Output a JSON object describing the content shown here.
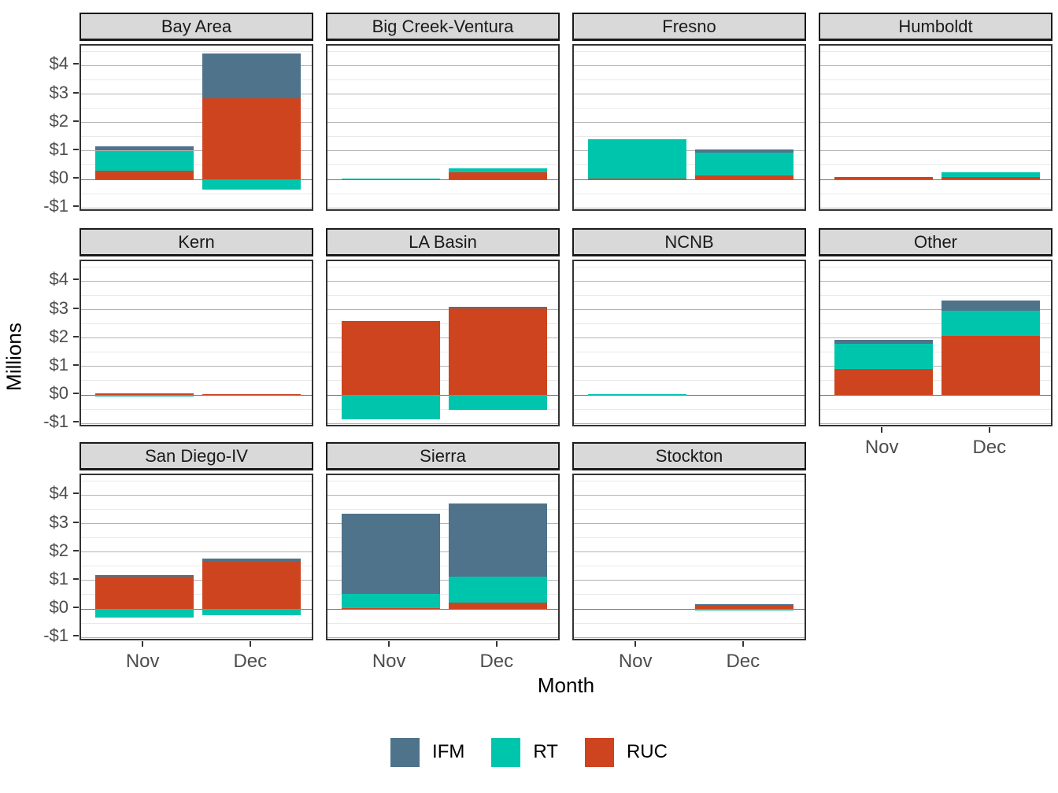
{
  "chart_data": {
    "type": "bar",
    "stacked": true,
    "facet_grid_columns": 4,
    "categories": [
      "Nov",
      "Dec"
    ],
    "series_names": [
      "IFM",
      "RT",
      "RUC"
    ],
    "stack_order_bottom_to_top": [
      "RUC",
      "RT",
      "IFM"
    ],
    "colors": {
      "IFM": "#4E738A",
      "RT": "#00C5AD",
      "RUC": "#CD441F"
    },
    "xlabel": "Month",
    "ylabel": "Millions",
    "ylim": [
      -1.16,
      4.7
    ],
    "y_major_ticks": [
      {
        "value": -1,
        "label": "-$1"
      },
      {
        "value": 0,
        "label": "$0"
      },
      {
        "value": 1,
        "label": "$1"
      },
      {
        "value": 2,
        "label": "$2"
      },
      {
        "value": 3,
        "label": "$3"
      },
      {
        "value": 4,
        "label": "$4"
      }
    ],
    "y_minor_ticks": [
      -0.5,
      0.5,
      1.5,
      2.5,
      3.5,
      4.5
    ],
    "grid": true,
    "legend_position": "bottom",
    "units": "millions of dollars",
    "facets": [
      {
        "title": "Bay Area",
        "bars": [
          {
            "month": "Nov",
            "IFM": 0.16,
            "RT": 0.69,
            "RUC": 0.32
          },
          {
            "month": "Dec",
            "IFM": 1.58,
            "RT": -0.37,
            "RUC": 2.84
          }
        ]
      },
      {
        "title": "Big Creek-Ventura",
        "bars": [
          {
            "month": "Nov",
            "IFM": 0,
            "RT": 0.03,
            "RUC": 0
          },
          {
            "month": "Dec",
            "IFM": 0,
            "RT": 0.12,
            "RUC": 0.26
          }
        ]
      },
      {
        "title": "Fresno",
        "bars": [
          {
            "month": "Nov",
            "IFM": 0,
            "RT": 1.38,
            "RUC": 0.04
          },
          {
            "month": "Dec",
            "IFM": 0.11,
            "RT": 0.82,
            "RUC": 0.13
          }
        ]
      },
      {
        "title": "Humboldt",
        "bars": [
          {
            "month": "Nov",
            "IFM": 0,
            "RT": 0,
            "RUC": 0.08
          },
          {
            "month": "Dec",
            "IFM": 0,
            "RT": 0.18,
            "RUC": 0.08
          }
        ]
      },
      {
        "title": "Kern",
        "bars": [
          {
            "month": "Nov",
            "IFM": 0,
            "RT": -0.02,
            "RUC": 0.06
          },
          {
            "month": "Dec",
            "IFM": 0,
            "RT": 0,
            "RUC": 0.04
          }
        ]
      },
      {
        "title": "LA Basin",
        "bars": [
          {
            "month": "Nov",
            "IFM": 0,
            "RT": -0.86,
            "RUC": 2.6
          },
          {
            "month": "Dec",
            "IFM": 0.06,
            "RT": -0.53,
            "RUC": 3.04
          }
        ]
      },
      {
        "title": "NCNB",
        "bars": [
          {
            "month": "Nov",
            "IFM": 0,
            "RT": 0.02,
            "RUC": 0
          },
          {
            "month": "Dec",
            "IFM": 0,
            "RT": 0,
            "RUC": 0
          }
        ]
      },
      {
        "title": "Other",
        "bars": [
          {
            "month": "Nov",
            "IFM": 0.13,
            "RT": 0.89,
            "RUC": 0.91
          },
          {
            "month": "Dec",
            "IFM": 0.34,
            "RT": 0.89,
            "RUC": 2.08
          }
        ]
      },
      {
        "title": "San Diego-IV",
        "bars": [
          {
            "month": "Nov",
            "IFM": 0.05,
            "RT": -0.29,
            "RUC": 1.13
          },
          {
            "month": "Dec",
            "IFM": 0.07,
            "RT": -0.22,
            "RUC": 1.7
          }
        ]
      },
      {
        "title": "Sierra",
        "bars": [
          {
            "month": "Nov",
            "IFM": 2.83,
            "RT": 0.49,
            "RUC": 0.03
          },
          {
            "month": "Dec",
            "IFM": 2.57,
            "RT": 0.94,
            "RUC": 0.21
          }
        ]
      },
      {
        "title": "Stockton",
        "bars": [
          {
            "month": "Nov",
            "IFM": 0,
            "RT": 0,
            "RUC": 0
          },
          {
            "month": "Dec",
            "IFM": 0.04,
            "RT": -0.02,
            "RUC": 0.14
          }
        ]
      }
    ]
  },
  "legend": {
    "items": [
      {
        "label": "IFM",
        "color": "#4E738A"
      },
      {
        "label": "RT",
        "color": "#00C5AD"
      },
      {
        "label": "RUC",
        "color": "#CD441F"
      }
    ]
  }
}
